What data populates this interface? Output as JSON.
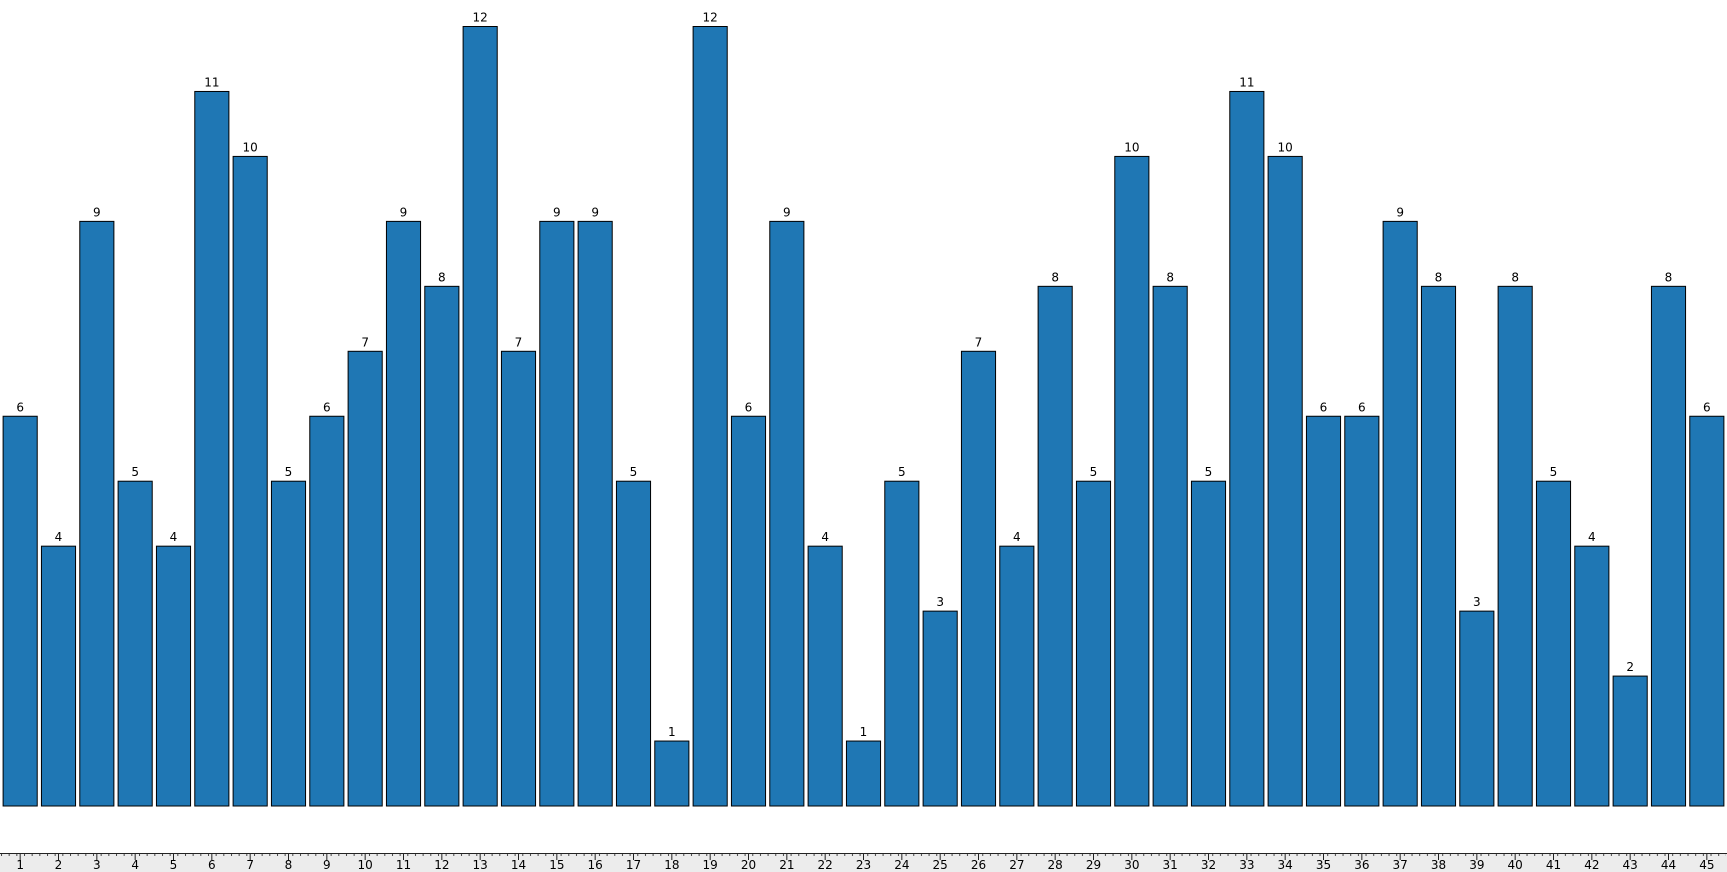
{
  "chart_data": {
    "type": "bar",
    "categories": [
      "1",
      "2",
      "3",
      "4",
      "5",
      "6",
      "7",
      "8",
      "9",
      "10",
      "11",
      "12",
      "13",
      "14",
      "15",
      "16",
      "17",
      "18",
      "19",
      "20",
      "21",
      "22",
      "23",
      "24",
      "25",
      "26",
      "27",
      "28",
      "29",
      "30",
      "31",
      "32",
      "33",
      "34",
      "35",
      "36",
      "37",
      "38",
      "39",
      "40",
      "41",
      "42",
      "43",
      "44",
      "45"
    ],
    "values": [
      6,
      4,
      9,
      5,
      4,
      11,
      10,
      5,
      6,
      7,
      9,
      8,
      12,
      7,
      9,
      9,
      5,
      1,
      12,
      6,
      9,
      4,
      1,
      5,
      3,
      7,
      4,
      8,
      5,
      10,
      8,
      5,
      11,
      10,
      6,
      6,
      9,
      8,
      3,
      8,
      5,
      4,
      2,
      8,
      6
    ],
    "color": "#1f77b4"
  }
}
